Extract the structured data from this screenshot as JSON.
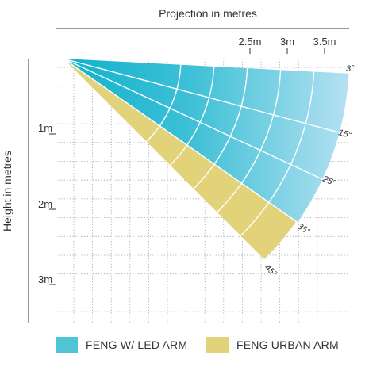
{
  "diagram": {
    "x_axis_title": "Projection in metres",
    "y_axis_title": "Height in metres",
    "projection_labels": [
      "2.5m",
      "3m",
      "3.5m"
    ],
    "height_labels": [
      "1m",
      "2m",
      "3m"
    ],
    "angle_labels": [
      "3°",
      "15°",
      "25°",
      "35°",
      "45°"
    ],
    "colors": {
      "led_light": "#a9dcf0",
      "led_dark": "#13b6cf",
      "urban": "#e2d27a",
      "grid": "#9a9a9a",
      "text": "#333333"
    }
  },
  "legend": [
    {
      "label": "FENG W/ LED ARM",
      "color": "#4fc4d4"
    },
    {
      "label": "FENG URBAN ARM",
      "color": "#e2d27a"
    }
  ]
}
